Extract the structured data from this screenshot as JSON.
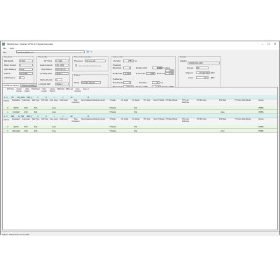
{
  "window": {
    "title": "Mile2Xpress - DekTec ATSC 3.0 Signal Generator",
    "controls": [
      "–",
      "☐",
      "✕"
    ]
  },
  "menu": [
    "File",
    "Help"
  ],
  "file": {
    "label": "File:",
    "value": "NVIDIA RTSD.xs3"
  },
  "general": {
    "title": "General",
    "bandwidth_label": "Bandwidth",
    "bandwidth": "6 MHz",
    "minor_label": "Minor Version",
    "minor": "0",
    "gi_label": "GHS Wakeup",
    "gi": "None",
    "fft_label": "FdPTP",
    "fft": "No PAPR",
    "l1_label": "L1D Present",
    "l1": "0"
  },
  "preamble": {
    "title": "Preamble",
    "fft_label": "FFT Size",
    "fft": "8_192k",
    "guard_label": "Guard Interval",
    "guard": "G5_1024",
    "pilot_label": "Pilot Pattern",
    "pilot": "Dx=3 Dy=4",
    "bt_label": "L1-Basic FEC",
    "bt": "Mode 1",
    "reduced_label": "Carrier Reduct",
    "reduced": "0",
    "l1d_label": "L1-Detail FEC",
    "l1d": "Mode 3",
    "add_label": "L1 Add Parity",
    "add": "K=1"
  },
  "time": {
    "title": "Time Info Insertion",
    "proc_label": "Processor",
    "proc": "No time info",
    "check_label": "Use specified starting time"
  },
  "frame": {
    "title": "Frame",
    "mode_label": "Mode",
    "mode": "Symbol aligned",
    "length_label": "Length",
    "length": "3",
    "unit": "ms"
  },
  "frameinfo": {
    "title": "Frame Info",
    "duration_label": "Duration",
    "duration": "275.5",
    "dur_unit": "ms",
    "preamble_label": "Preamble",
    "nsym_label": "#Symbols",
    "nsym": "3",
    "bcells_label": "#Cells in first",
    "bcells": "6,377",
    "bcells2_label": "#Cells in others",
    "bcells2": "4,060",
    "l1b_label": "#L1B Cells",
    "l1b": "1,350",
    "l1d_label": "#L1D Cells",
    "l1d": "2,856",
    "aplp_label": "#PLP Cells",
    "aplp": "5,485"
  },
  "subframes": {
    "title": "Subframes",
    "num_label": "NumFrames",
    "num": "2",
    "dur_label": "Duration",
    "dur": "94",
    "dur_unit": "ms",
    "data_label": "#Data Cells",
    "data": "449,190",
    "cells_label": "#Cells in SBS",
    "cells": "3,174",
    "sbs_label": "#Cells in SBS",
    "sbs": "3,300"
  },
  "output": {
    "title": "Output",
    "adapter_label": "Adapter",
    "adapter": "1 #600 DTA-2115",
    "format_label": "Format",
    "format": "RF",
    "channel_label": "Channel",
    "channel": "474,000,000",
    "ch_unit": "MHz",
    "level_label": "Level",
    "level": "-27.0",
    "lvl_unit": "dBm"
  },
  "tabs": [
    "Subframe Params",
    "Channel Fading"
  ],
  "sf_header": [
    "FFT Size",
    "Guard Interval",
    "Pilot Pattern",
    "Pilot Boost",
    "Pilot Length",
    "Carrier Reduct",
    "SBS First",
    "SBS Last",
    "Num Symbols",
    "Freq. Il."
  ],
  "plp_header": [
    "Modulation",
    "Code Rate",
    "FEC Type",
    "PLP Size",
    "Core Layer",
    "LDM Level",
    "Time Interleaver",
    "Num Subslices",
    "Subslice Interval",
    "TI Mode",
    "LTI Depth",
    "CIL Depth",
    "HTI Num",
    "Num TI Blocks",
    "HTI Max Blocks",
    "HTI Inter Subframe",
    "HTI Blk Cells",
    "PLP Start",
    "HTI Num FEC Blocks",
    "Source"
  ],
  "subframes_rows": [
    {
      "idx": "0",
      "fft": "8K",
      "gi": "G5_1024",
      "pp": "SP3_4",
      "boost": "4",
      "len": "0",
      "cr": "✓",
      "sf": "✓",
      "sl": "72",
      "ns": "",
      "fi": "☑"
    },
    {
      "idx": "1",
      "fft": "16K",
      "gi": "G_768",
      "pp": "SP3_2",
      "boost": "4",
      "len": "0",
      "cr": "✓",
      "sf": "✓",
      "sl": "40",
      "ns": "",
      "fi": "☑"
    }
  ],
  "plp_rows": [
    {
      "sf": "0",
      "id": "0",
      "mod": "QPSK",
      "cr": "8/15",
      "fec": "64K",
      "size": "",
      "core": "Core",
      "ldm": "",
      "ti": "",
      "ns": "",
      "si": "",
      "tim": "TI Mode",
      "lti": "",
      "cil": "512",
      "htinum": "",
      "ntib": "",
      "hmb": "",
      "his": "",
      "hbc": "",
      "start": "",
      "hnfb": "",
      "src": "PRBS"
    },
    {
      "sf": "0",
      "id": "1",
      "mod": "16-QAM",
      "cr": "9/15",
      "fec": "64K",
      "size": "",
      "core": "Core",
      "ldm": "",
      "ti": "",
      "ns": "",
      "si": "",
      "tim": "TI Mode",
      "lti": "",
      "cil": "512",
      "htinum": "",
      "ntib": "",
      "hmb": "",
      "his": "",
      "hbc": "",
      "start": "Auto",
      "hnfb": "",
      "src": "PRBS"
    },
    {
      "sf": "1",
      "id": "2",
      "mod": "QPSK",
      "cr": "8/15",
      "fec": "64K",
      "size": "",
      "core": "Core",
      "ldm": "",
      "ti": "",
      "ns": "",
      "si": "",
      "tim": "TI Mode",
      "lti": "",
      "cil": "512",
      "htinum": "",
      "ntib": "",
      "hmb": "",
      "his": "",
      "hbc": "",
      "start": "",
      "hnfb": "",
      "src": "PRBS"
    },
    {
      "sf": "1",
      "id": "3",
      "mod": "256-QAM",
      "cr": "9/15",
      "fec": "64K",
      "size": "",
      "core": "Core",
      "ldm": "",
      "ti": "",
      "ns": "",
      "si": "",
      "tim": "TI Mode",
      "lti": "",
      "cil": "512",
      "htinum": "",
      "ntib": "",
      "hmb": "",
      "his": "",
      "hbc": "",
      "start": "Auto",
      "hnfb": "",
      "src": "PRBS"
    }
  ],
  "subframe_label": "Subframe",
  "plp_label": "PLP ID",
  "status": "Status : Parameters set is valid",
  "colors": {
    "cyan": "#d7f0f0",
    "green": "#c9e8c7",
    "lightgreen": "#eaf6e4"
  }
}
